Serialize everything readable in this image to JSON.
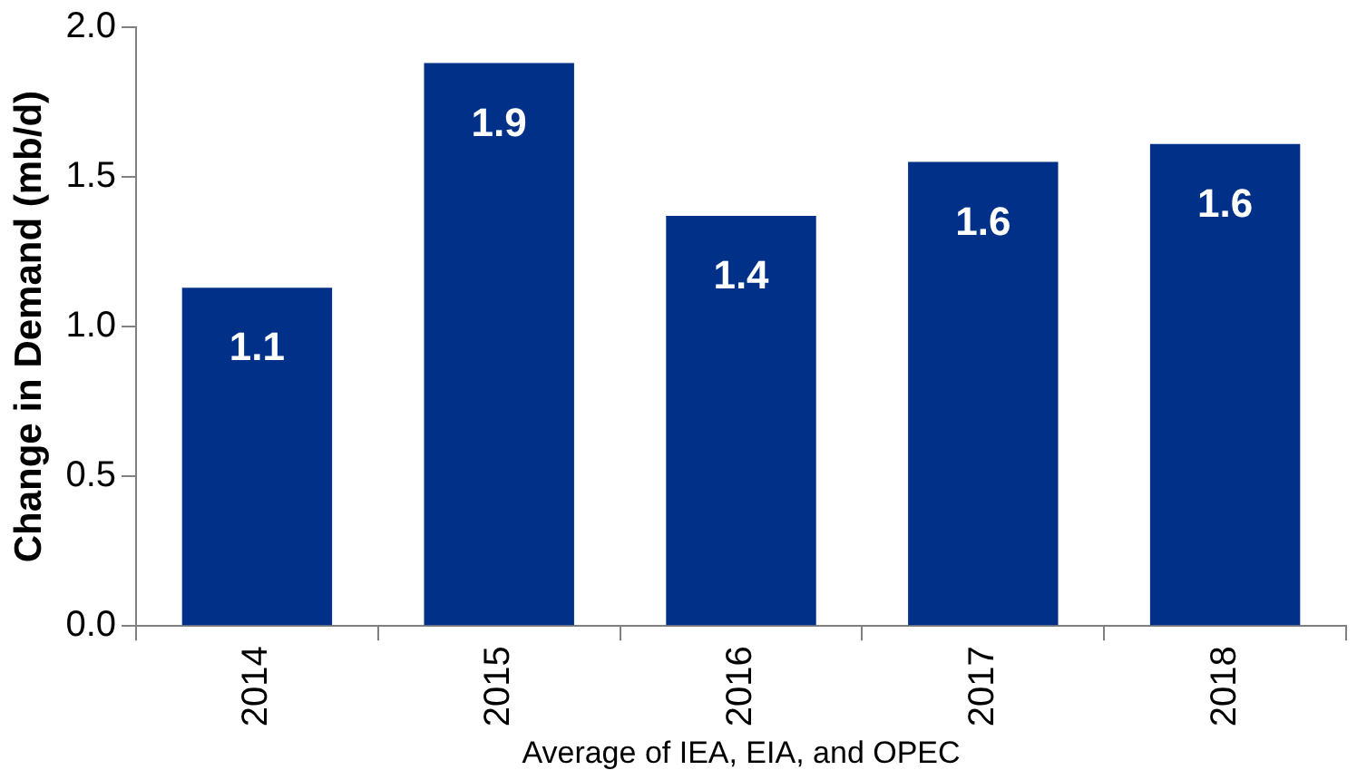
{
  "chart_data": {
    "type": "bar",
    "ylabel": "Change in Demand (mb/d)",
    "xlabel": "Average of IEA, EIA, and OPEC",
    "categories": [
      "2014",
      "2015",
      "2016",
      "2017",
      "2018"
    ],
    "values": [
      1.13,
      1.88,
      1.37,
      1.55,
      1.61
    ],
    "value_labels": [
      "1.1",
      "1.9",
      "1.4",
      "1.6",
      "1.6"
    ],
    "color": "#003087",
    "ylim": [
      0,
      2
    ],
    "yticks": [
      {
        "value": 0,
        "label": "0.0"
      },
      {
        "value": 0.5,
        "label": "0.5"
      },
      {
        "value": 1,
        "label": "1.0"
      },
      {
        "value": 1.5,
        "label": "1.5"
      },
      {
        "value": 2,
        "label": "2.0"
      }
    ],
    "grid": false,
    "legend": false
  }
}
